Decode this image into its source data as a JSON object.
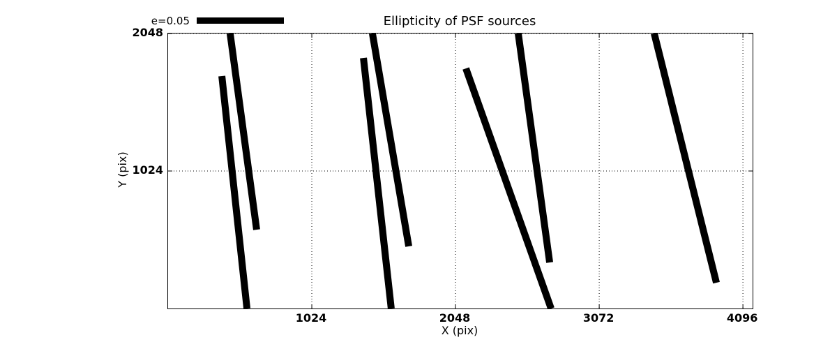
{
  "title": "Ellipticity of PSF sources",
  "legend": {
    "label": "e=0.05"
  },
  "axes": {
    "xlabel": "X (pix)",
    "ylabel": "Y (pix)"
  },
  "chart_data": {
    "type": "line",
    "subtype": "ellipticity-whisker-plot",
    "title": "Ellipticity of PSF sources",
    "xlabel": "X (pix)",
    "ylabel": "Y (pix)",
    "xlim": [
      0,
      4165
    ],
    "ylim": [
      0,
      2048
    ],
    "x_ticks": [
      1024,
      2048,
      3072,
      4096
    ],
    "y_ticks": [
      1024,
      2048
    ],
    "grid": "dotted",
    "legend": {
      "label": "e=0.05",
      "scale_value": 0.05
    },
    "line_color": "#000000",
    "background_color": "#ffffff",
    "segments": [
      {
        "x1": 442,
        "y1": 2048,
        "x2": 631,
        "y2": 587
      },
      {
        "x1": 383,
        "y1": 1731,
        "x2": 562,
        "y2": 0
      },
      {
        "x1": 1456,
        "y1": 2048,
        "x2": 1715,
        "y2": 463
      },
      {
        "x1": 1392,
        "y1": 1866,
        "x2": 1590,
        "y2": 0
      },
      {
        "x1": 2122,
        "y1": 1788,
        "x2": 2729,
        "y2": 0
      },
      {
        "x1": 2495,
        "y1": 2048,
        "x2": 2719,
        "y2": 343
      },
      {
        "x1": 3464,
        "y1": 2048,
        "x2": 3907,
        "y2": 192
      }
    ]
  }
}
